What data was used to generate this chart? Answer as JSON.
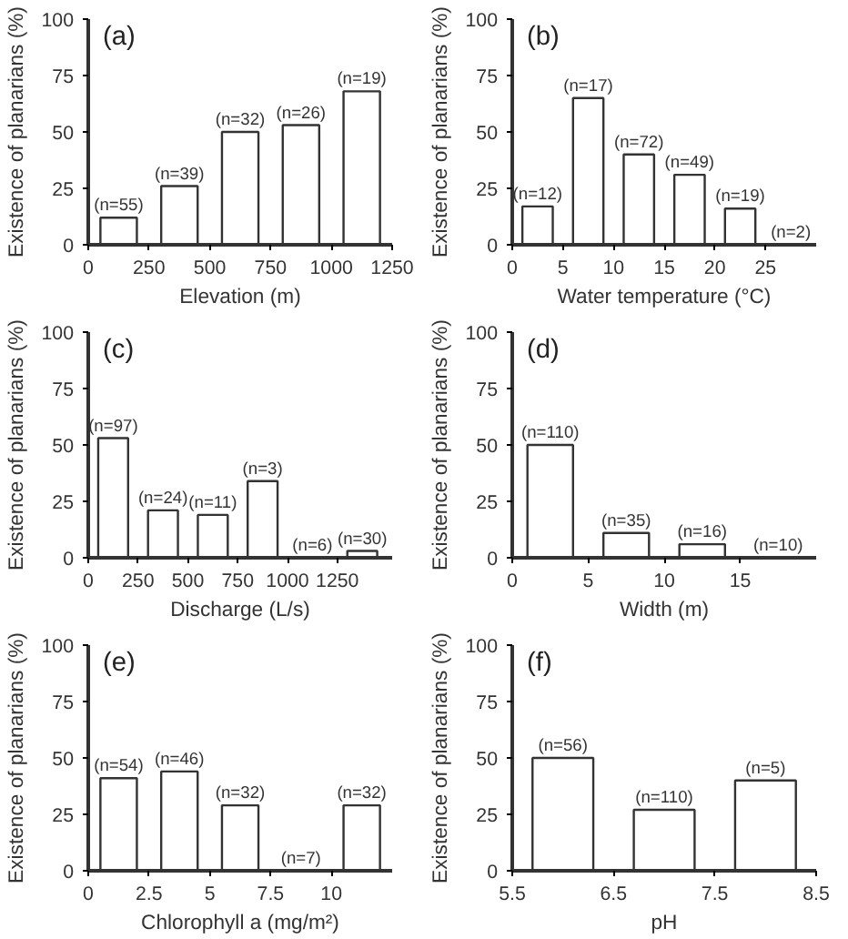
{
  "chart_data": [
    {
      "type": "bar",
      "title": "(a)",
      "xlabel": "Elevation (m)",
      "ylabel": "Existence of planarians (%)",
      "x": [
        125,
        375,
        625,
        875,
        1125
      ],
      "values": [
        12,
        26,
        50,
        53,
        68
      ],
      "annotations": [
        {
          "text": "(n=55)",
          "x": 125,
          "y": 12
        },
        {
          "text": "(n=39)",
          "x": 375,
          "y": 26
        },
        {
          "text": "(n=32)",
          "x": 625,
          "y": 50
        },
        {
          "text": "(n=26)",
          "x": 875,
          "y": 53
        },
        {
          "text": "(n=19)",
          "x": 1125,
          "y": 68
        }
      ],
      "color": "#ffffff",
      "xlim": [
        0,
        1250
      ],
      "xticks": [
        0,
        250,
        500,
        750,
        1000,
        1250
      ],
      "ylim": [
        0,
        100
      ],
      "yticks": [
        0,
        25,
        50,
        75,
        100
      ],
      "grid": false
    },
    {
      "type": "bar",
      "title": "(b)",
      "xlabel": "Water temperature (°C)",
      "ylabel": "Existence of planarians (%)",
      "x": [
        2.5,
        7.5,
        12.5,
        17.5,
        22.5,
        27.5
      ],
      "values": [
        17,
        65,
        40,
        31,
        16,
        0
      ],
      "annotations": [
        {
          "text": "(n=12)",
          "x": 2.5,
          "y": 17
        },
        {
          "text": "(n=17)",
          "x": 7.5,
          "y": 65
        },
        {
          "text": "(n=72)",
          "x": 12.5,
          "y": 40
        },
        {
          "text": "(n=49)",
          "x": 17.5,
          "y": 31
        },
        {
          "text": "(n=19)",
          "x": 22.5,
          "y": 16
        },
        {
          "text": "(n=2)",
          "x": 27.5,
          "y": 0
        }
      ],
      "color": "#ffffff",
      "xlim": [
        0,
        30
      ],
      "xticks": [
        0,
        5,
        10,
        15,
        20,
        25
      ],
      "ylim": [
        0,
        100
      ],
      "yticks": [
        0,
        25,
        50,
        75,
        100
      ],
      "grid": false
    },
    {
      "type": "bar",
      "title": "(c)",
      "xlabel": "Discharge (L/s)",
      "ylabel": "Existence of planarians (%)",
      "x": [
        125,
        375,
        625,
        875,
        1125,
        1375
      ],
      "values": [
        53,
        21,
        19,
        34,
        0,
        3
      ],
      "annotations": [
        {
          "text": "(n=97)",
          "x": 125,
          "y": 53
        },
        {
          "text": "(n=24)",
          "x": 375,
          "y": 21
        },
        {
          "text": "(n=11)",
          "x": 625,
          "y": 19
        },
        {
          "text": "(n=3)",
          "x": 875,
          "y": 34
        },
        {
          "text": "(n=6)",
          "x": 1125,
          "y": 0
        },
        {
          "text": "(n=30)",
          "x": 1375,
          "y": 3
        }
      ],
      "color": "#ffffff",
      "xlim": [
        0,
        1525
      ],
      "xticks": [
        0,
        250,
        500,
        750,
        1000,
        1250
      ],
      "ylim": [
        0,
        100
      ],
      "yticks": [
        0,
        25,
        50,
        75,
        100
      ],
      "grid": false
    },
    {
      "type": "bar",
      "title": "(d)",
      "xlabel": "Width (m)",
      "ylabel": "Existence of planarians (%)",
      "x": [
        2.5,
        7.5,
        12.5,
        17.5
      ],
      "values": [
        50,
        11,
        6,
        0
      ],
      "annotations": [
        {
          "text": "(n=110)",
          "x": 2.5,
          "y": 50
        },
        {
          "text": "(n=35)",
          "x": 7.5,
          "y": 11
        },
        {
          "text": "(n=16)",
          "x": 12.5,
          "y": 6
        },
        {
          "text": "(n=10)",
          "x": 17.5,
          "y": 0
        }
      ],
      "color": "#ffffff",
      "xlim": [
        0,
        20
      ],
      "xticks": [
        0,
        5,
        10,
        15
      ],
      "ylim": [
        0,
        100
      ],
      "yticks": [
        0,
        25,
        50,
        75,
        100
      ],
      "grid": false
    },
    {
      "type": "bar",
      "title": "(e)",
      "xlabel": "Chlorophyll a (mg/m²)",
      "ylabel": "Existence of planarians (%)",
      "x": [
        1.25,
        3.75,
        6.25,
        8.75,
        11.25
      ],
      "values": [
        41,
        44,
        29,
        0,
        29
      ],
      "annotations": [
        {
          "text": "(n=54)",
          "x": 1.25,
          "y": 41
        },
        {
          "text": "(n=46)",
          "x": 3.75,
          "y": 44
        },
        {
          "text": "(n=32)",
          "x": 6.25,
          "y": 29
        },
        {
          "text": "(n=7)",
          "x": 8.75,
          "y": 0
        },
        {
          "text": "(n=32)",
          "x": 11.25,
          "y": 29
        }
      ],
      "color": "#ffffff",
      "xlim": [
        0,
        12.5
      ],
      "xticks": [
        0,
        2.5,
        5,
        7.5,
        10
      ],
      "ylim": [
        0,
        100
      ],
      "yticks": [
        0,
        25,
        50,
        75,
        100
      ],
      "grid": false
    },
    {
      "type": "bar",
      "title": "(f)",
      "xlabel": "pH",
      "ylabel": "Existence of planarians (%)",
      "x": [
        6,
        7,
        8
      ],
      "values": [
        50,
        27,
        40
      ],
      "annotations": [
        {
          "text": "(n=56)",
          "x": 6,
          "y": 50
        },
        {
          "text": "(n=110)",
          "x": 7,
          "y": 27
        },
        {
          "text": "(n=5)",
          "x": 8,
          "y": 40
        }
      ],
      "color": "#ffffff",
      "xlim": [
        5.5,
        8.5
      ],
      "xticks": [
        5.5,
        6.5,
        7.5,
        8.5
      ],
      "ylim": [
        0,
        100
      ],
      "yticks": [
        0,
        25,
        50,
        75,
        100
      ],
      "grid": false
    }
  ]
}
